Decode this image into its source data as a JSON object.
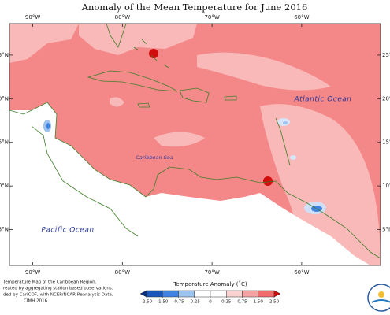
{
  "map": {
    "title": "Anomaly of the Mean Temperature for June 2016",
    "xlim": [
      -92.6,
      -51.2
    ],
    "ylim": [
      0.9,
      28.6
    ],
    "xticks": [
      {
        "value": -90,
        "label": "90°W"
      },
      {
        "value": -80,
        "label": "80°W"
      },
      {
        "value": -70,
        "label": "70°W"
      },
      {
        "value": -60,
        "label": "60°W"
      }
    ],
    "yticks": [
      {
        "value": 25,
        "label": "25°N"
      },
      {
        "value": 20,
        "label": "20°N"
      },
      {
        "value": 15,
        "label": "15°N"
      },
      {
        "value": 10,
        "label": "10°N"
      },
      {
        "value": 5,
        "label": "5°N"
      }
    ],
    "labels": [
      "Atlantic Ocean",
      "Caribbean Sea",
      "Pacific Ocean"
    ],
    "footnote": [
      "Temperature Map of the Caribbean Region.",
      "reated by aggregating station based observations.",
      "ded by CariCOF, with NCEP/NCAR Reanalysis Data.",
      "CIMH 2016"
    ],
    "colorbar": {
      "title": "Temperature Anomaly (˚C)",
      "ticks": [
        {
          "value": -2.5,
          "label": "-2.50"
        },
        {
          "value": -1.5,
          "label": "-1.50"
        },
        -0.75,
        -0.25,
        0,
        0.25,
        0.75,
        {
          "value": 1.5,
          "label": "1.50"
        },
        {
          "value": 2.5,
          "label": "2.50"
        }
      ],
      "colors": [
        "#08307e",
        "#1a55b8",
        "#3f82e0",
        "#9cc2f0",
        "#ffffff",
        "#ffffff",
        "#fbd2d2",
        "#f6a2a2",
        "#f06b6b",
        "#d10d0d"
      ]
    }
  }
}
